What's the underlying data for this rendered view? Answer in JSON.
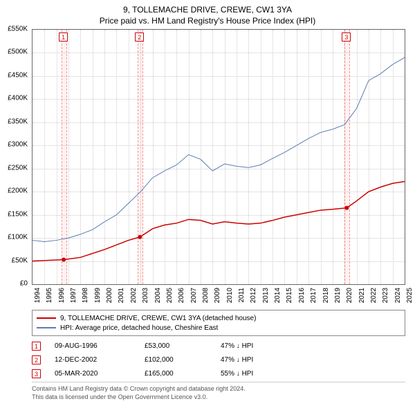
{
  "title_line1": "9, TOLLEMACHE DRIVE, CREWE, CW1 3YA",
  "title_line2": "Price paid vs. HM Land Registry's House Price Index (HPI)",
  "chart": {
    "type": "line",
    "xlim": [
      1994,
      2025
    ],
    "ylim": [
      0,
      550000
    ],
    "y_ticks": [
      0,
      50000,
      100000,
      150000,
      200000,
      250000,
      300000,
      350000,
      400000,
      450000,
      500000,
      550000
    ],
    "y_tick_labels": [
      "£0",
      "£50K",
      "£100K",
      "£150K",
      "£200K",
      "£250K",
      "£300K",
      "£350K",
      "£400K",
      "£450K",
      "£500K",
      "£550K"
    ],
    "x_ticks": [
      1994,
      1995,
      1996,
      1997,
      1998,
      1999,
      2000,
      2001,
      2002,
      2003,
      2004,
      2005,
      2006,
      2007,
      2008,
      2009,
      2010,
      2011,
      2012,
      2013,
      2014,
      2015,
      2016,
      2017,
      2018,
      2019,
      2020,
      2021,
      2022,
      2023,
      2024,
      2025
    ],
    "background_color": "#ffffff",
    "grid_color": "rgba(150,150,150,0.5)",
    "marker_band_fill": "rgba(255,0,0,0.05)",
    "marker_band_border": "rgba(255,0,0,0.4)",
    "markers": [
      {
        "num": "1",
        "year": 1996.6
      },
      {
        "num": "2",
        "year": 2002.95
      },
      {
        "num": "3",
        "year": 2020.18
      }
    ],
    "series": [
      {
        "name": "price_paid",
        "label": "9, TOLLEMACHE DRIVE, CREWE, CW1 3YA (detached house)",
        "color": "#cc0000",
        "width": 1.5,
        "points": [
          [
            1994,
            50000
          ],
          [
            1996.6,
            53000
          ],
          [
            1998,
            58000
          ],
          [
            2000,
            75000
          ],
          [
            2002,
            95000
          ],
          [
            2002.95,
            102000
          ],
          [
            2004,
            120000
          ],
          [
            2005,
            128000
          ],
          [
            2006,
            132000
          ],
          [
            2007,
            140000
          ],
          [
            2008,
            138000
          ],
          [
            2009,
            130000
          ],
          [
            2010,
            135000
          ],
          [
            2011,
            132000
          ],
          [
            2012,
            130000
          ],
          [
            2013,
            132000
          ],
          [
            2014,
            138000
          ],
          [
            2015,
            145000
          ],
          [
            2016,
            150000
          ],
          [
            2017,
            155000
          ],
          [
            2018,
            160000
          ],
          [
            2019,
            162000
          ],
          [
            2020.18,
            165000
          ],
          [
            2021,
            180000
          ],
          [
            2022,
            200000
          ],
          [
            2023,
            210000
          ],
          [
            2024,
            218000
          ],
          [
            2025,
            222000
          ]
        ],
        "dots": [
          [
            1996.6,
            53000
          ],
          [
            2002.95,
            102000
          ],
          [
            2020.18,
            165000
          ]
        ]
      },
      {
        "name": "hpi",
        "label": "HPI: Average price, detached house, Cheshire East",
        "color": "#5b7bb4",
        "width": 1,
        "points": [
          [
            1994,
            95000
          ],
          [
            1995,
            92000
          ],
          [
            1996,
            95000
          ],
          [
            1997,
            100000
          ],
          [
            1998,
            108000
          ],
          [
            1999,
            118000
          ],
          [
            2000,
            135000
          ],
          [
            2001,
            150000
          ],
          [
            2002,
            175000
          ],
          [
            2003,
            200000
          ],
          [
            2004,
            230000
          ],
          [
            2005,
            245000
          ],
          [
            2006,
            258000
          ],
          [
            2007,
            280000
          ],
          [
            2008,
            270000
          ],
          [
            2009,
            245000
          ],
          [
            2010,
            260000
          ],
          [
            2011,
            255000
          ],
          [
            2012,
            252000
          ],
          [
            2013,
            258000
          ],
          [
            2014,
            272000
          ],
          [
            2015,
            285000
          ],
          [
            2016,
            300000
          ],
          [
            2017,
            315000
          ],
          [
            2018,
            328000
          ],
          [
            2019,
            335000
          ],
          [
            2020,
            345000
          ],
          [
            2021,
            380000
          ],
          [
            2022,
            440000
          ],
          [
            2023,
            455000
          ],
          [
            2024,
            475000
          ],
          [
            2025,
            490000
          ]
        ],
        "dots": []
      }
    ]
  },
  "legend": [
    {
      "color": "#cc0000",
      "label": "9, TOLLEMACHE DRIVE, CREWE, CW1 3YA (detached house)"
    },
    {
      "color": "#5b7bb4",
      "label": "HPI: Average price, detached house, Cheshire East"
    }
  ],
  "events": [
    {
      "num": "1",
      "date": "09-AUG-1996",
      "price": "£53,000",
      "hpi": "47% ↓ HPI"
    },
    {
      "num": "2",
      "date": "12-DEC-2002",
      "price": "£102,000",
      "hpi": "47% ↓ HPI"
    },
    {
      "num": "3",
      "date": "05-MAR-2020",
      "price": "£165,000",
      "hpi": "55% ↓ HPI"
    }
  ],
  "footer_line1": "Contains HM Land Registry data © Crown copyright and database right 2024.",
  "footer_line2": "This data is licensed under the Open Government Licence v3.0."
}
